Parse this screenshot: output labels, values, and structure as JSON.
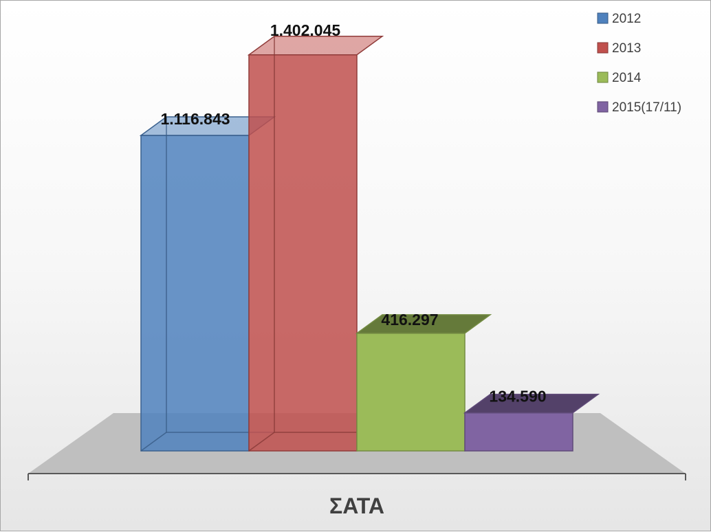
{
  "chart_data": {
    "type": "bar",
    "title": "",
    "xlabel": "",
    "ylabel": "",
    "categories": [
      "ΣΑΤΑ"
    ],
    "series": [
      {
        "name": "2012",
        "values": [
          1116843
        ],
        "label": "1.116.843",
        "color": "#4f81bd"
      },
      {
        "name": "2013",
        "values": [
          1402045
        ],
        "label": "1.402.045",
        "color": "#c0504d"
      },
      {
        "name": "2014",
        "values": [
          416297
        ],
        "label": "416.297",
        "color": "#9bbb59"
      },
      {
        "name": "2015(17/11)",
        "values": [
          134590
        ],
        "label": "134.590",
        "color": "#8064a2"
      }
    ],
    "ylim": [
      0,
      1500000
    ],
    "grid": false,
    "legend_position": "top-right",
    "style": "3d-clustered-column"
  }
}
